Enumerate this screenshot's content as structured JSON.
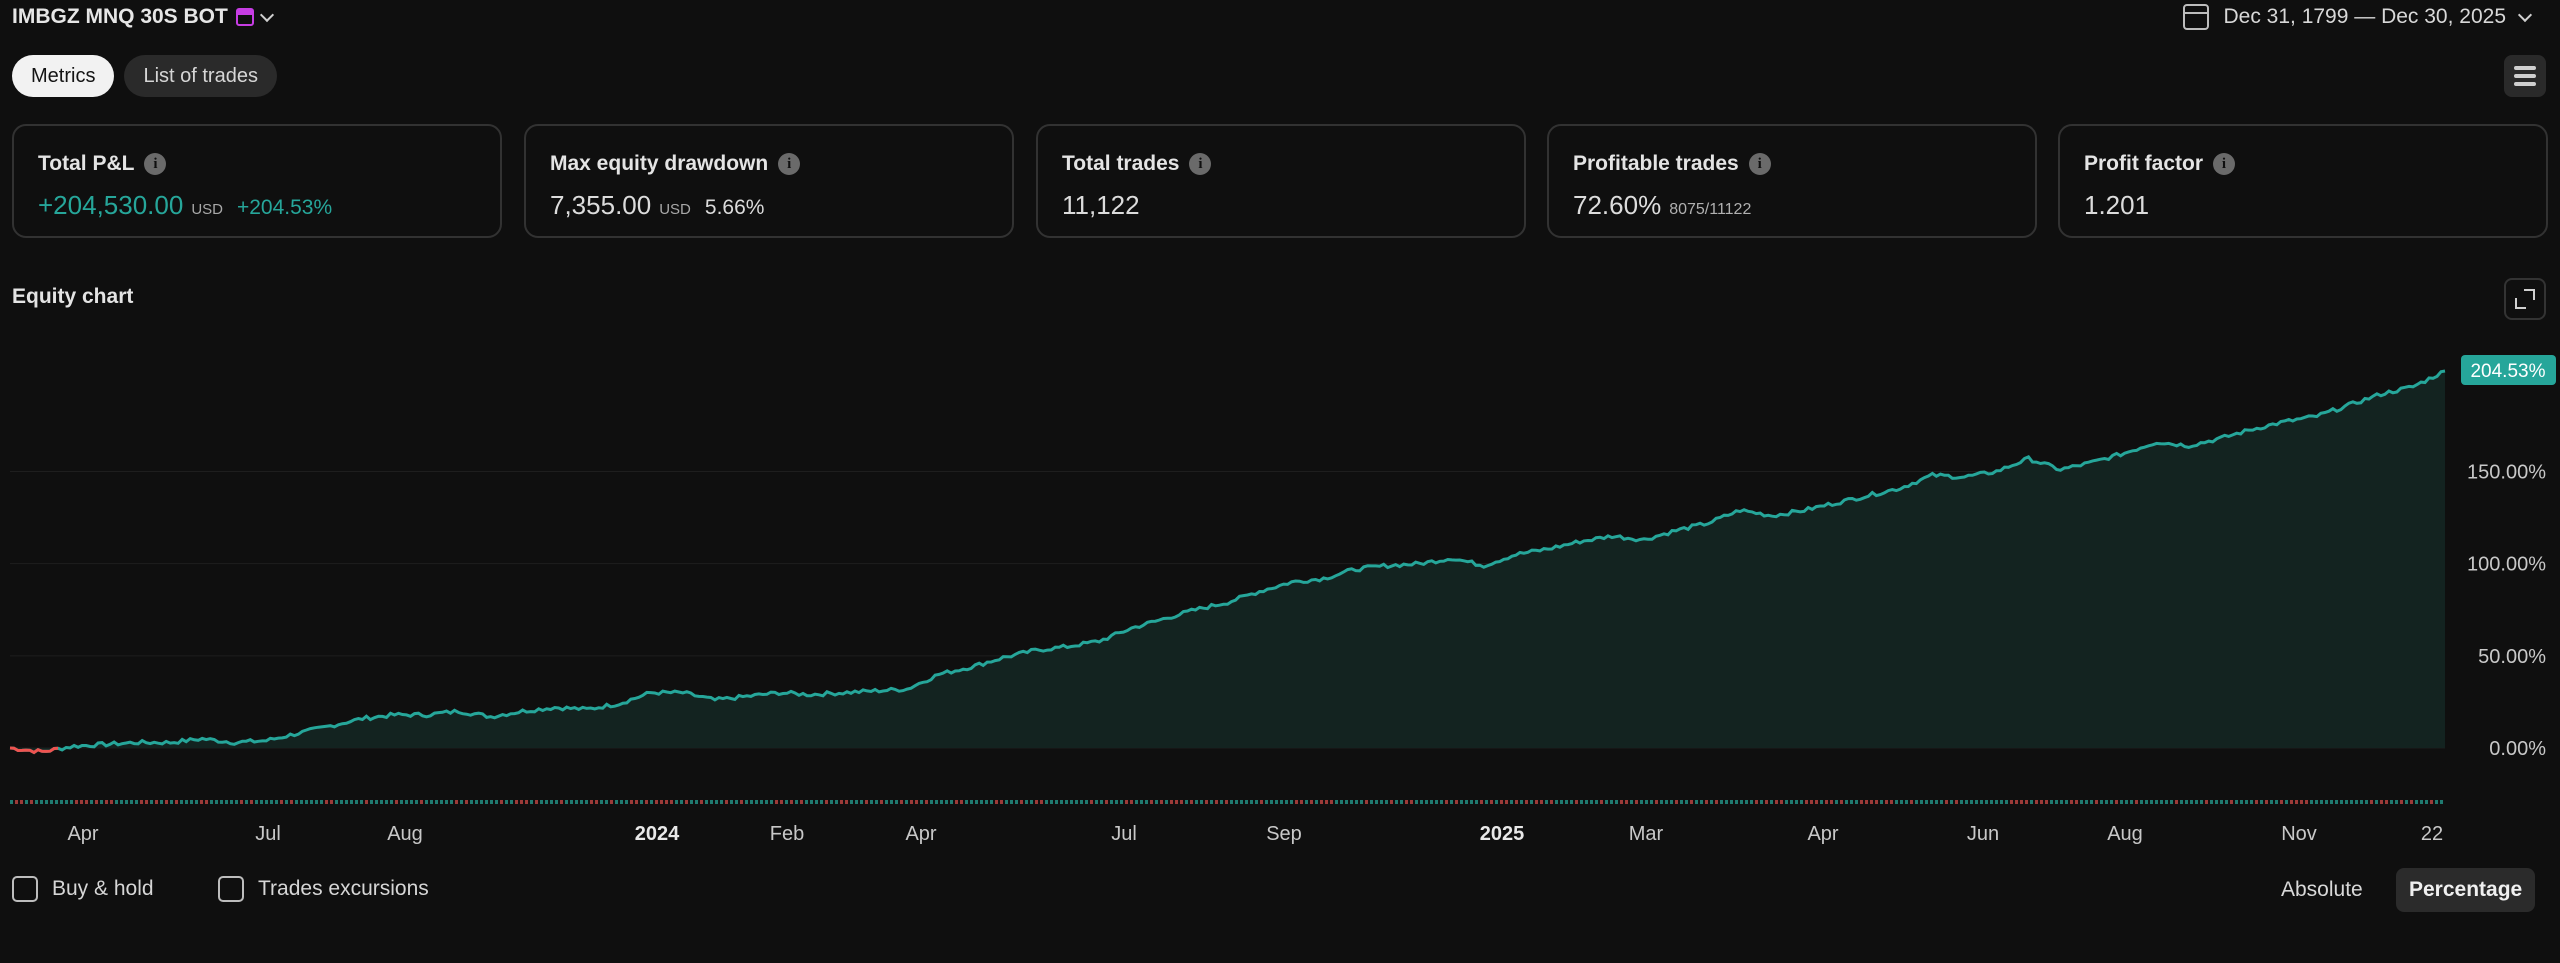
{
  "header": {
    "strategy_title": "IMBGZ MNQ 30S BOT",
    "date_range": "Dec 31, 1799 — Dec 30, 2025"
  },
  "tabs": [
    {
      "label": "Metrics",
      "active": true
    },
    {
      "label": "List of trades",
      "active": false
    }
  ],
  "metrics": {
    "total_pl": {
      "label": "Total P&L",
      "value": "+204,530.00",
      "unit": "USD",
      "percent": "+204.53%"
    },
    "max_drawdown": {
      "label": "Max equity drawdown",
      "value": "7,355.00",
      "unit": "USD",
      "percent": "5.66%"
    },
    "total_trades": {
      "label": "Total trades",
      "value": "11,122"
    },
    "profitable_trades": {
      "label": "Profitable trades",
      "value": "72.60%",
      "detail": "8075/11122"
    },
    "profit_factor": {
      "label": "Profit factor",
      "value": "1.201"
    }
  },
  "equity_chart": {
    "title": "Equity chart"
  },
  "chart_data": {
    "type": "area",
    "title": "Equity chart",
    "y_axis_ticks": [
      "0.00%",
      "50.00%",
      "100.00%",
      "150.00%"
    ],
    "ylim": [
      -10,
      215
    ],
    "x_tick_labels": [
      "Apr",
      "Jul",
      "Aug",
      "2024",
      "Feb",
      "Apr",
      "Jul",
      "Sep",
      "2025",
      "Mar",
      "Apr",
      "Jun",
      "Aug",
      "Nov",
      "22"
    ],
    "bold_x_ticks": [
      "2024",
      "2025"
    ],
    "last_value_label": "204.53%",
    "series": [
      {
        "values": [
          0,
          -2,
          1,
          2,
          3,
          3,
          5,
          3,
          4,
          8,
          12,
          16,
          18,
          18,
          20,
          17,
          20,
          22,
          21,
          24,
          30,
          30,
          26,
          28,
          30,
          29,
          30,
          31,
          32,
          40,
          44,
          49,
          53,
          55,
          58,
          65,
          70,
          75,
          79,
          85,
          90,
          92,
          97,
          99,
          100,
          103,
          99,
          105,
          108,
          112,
          115,
          113,
          118,
          122,
          129,
          126,
          129,
          133,
          137,
          141,
          148,
          147,
          150,
          157,
          151,
          155,
          160,
          166,
          164,
          168,
          173,
          177,
          180,
          186,
          192,
          196,
          204.53
        ]
      }
    ],
    "colors": {
      "line_up": "#26a69a",
      "line_down": "#ef5350",
      "area_fill": "#132320",
      "label_bg": "#26a69a",
      "grid": "#1e1e1e"
    }
  },
  "footer": {
    "buy_hold": "Buy & hold",
    "trades_excursions": "Trades excursions",
    "absolute": "Absolute",
    "percentage": "Percentage"
  }
}
